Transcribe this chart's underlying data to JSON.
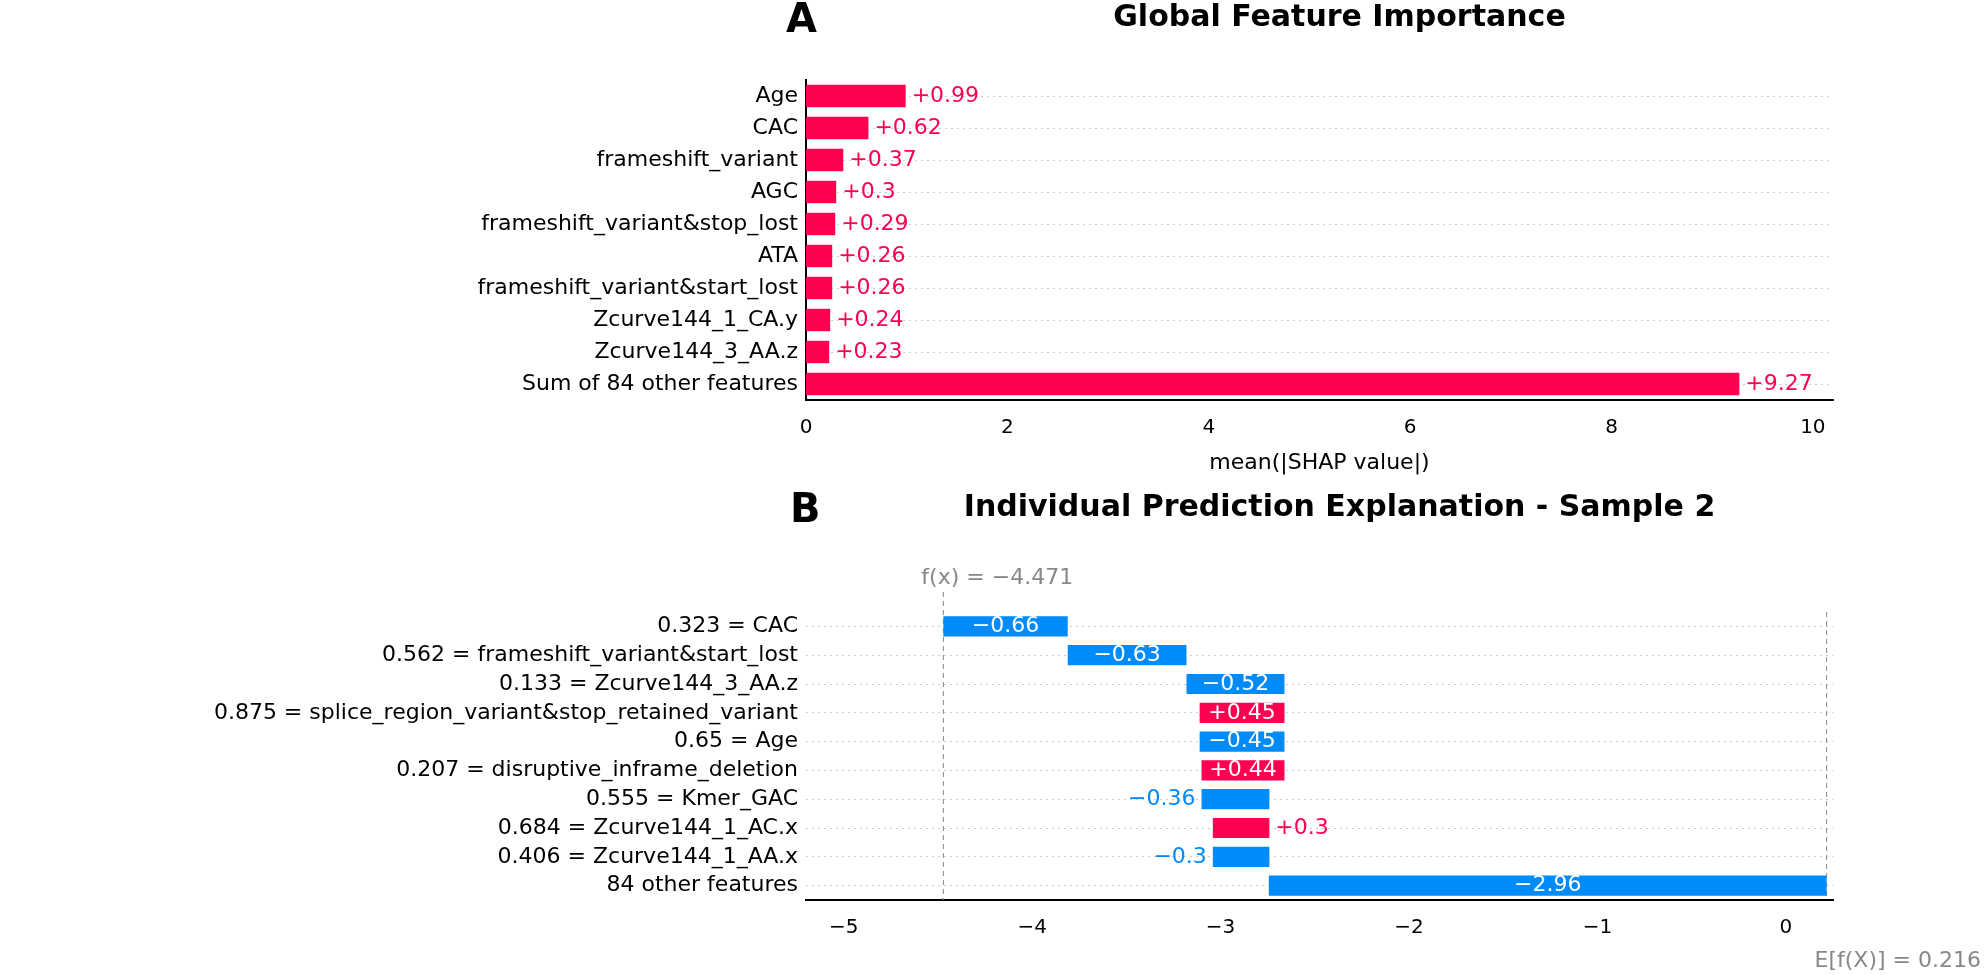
{
  "chart_data": [
    {
      "type": "bar",
      "orientation": "horizontal",
      "title": "Global Feature Importance",
      "xlabel": "mean(|SHAP value|)",
      "annotations": [
        "A"
      ],
      "categories": [
        "Age",
        "CAC",
        "frameshift_variant",
        "AGC",
        "frameshift_variant&stop_lost",
        "ATA",
        "frameshift_variant&start_lost",
        "Zcurve144_1_CA.y",
        "Zcurve144_3_AA.z",
        "Sum of 84 other features"
      ],
      "values": [
        0.99,
        0.62,
        0.37,
        0.3,
        0.29,
        0.26,
        0.26,
        0.24,
        0.23,
        9.27
      ],
      "value_labels": [
        "+0.99",
        "+0.62",
        "+0.37",
        "+0.3",
        "+0.29",
        "+0.26",
        "+0.26",
        "+0.24",
        "+0.23",
        "+9.27"
      ],
      "color": "#ff0051",
      "xlim": [
        0,
        10.2
      ],
      "xticks": [
        0,
        2,
        4,
        6,
        8,
        10
      ],
      "grid": "y",
      "legend": false
    },
    {
      "type": "bar",
      "orientation": "horizontal",
      "title": "Individual Prediction Explanation - Sample 2",
      "annotations": [
        "B"
      ],
      "categories": [
        "0.323 = CAC",
        "0.562 = frameshift_variant&start_lost",
        "0.133 = Zcurve144_3_AA.z",
        "0.875 = splice_region_variant&stop_retained_variant",
        "0.65 = Age",
        "0.207 = disruptive_inframe_deletion",
        "0.555 = Kmer_GAC",
        "0.684 = Zcurve144_1_AC.x",
        "0.406 = Zcurve144_1_AA.x",
        "84 other features"
      ],
      "values": [
        -0.66,
        -0.63,
        -0.52,
        0.45,
        -0.45,
        0.44,
        -0.36,
        0.3,
        -0.3,
        -2.96
      ],
      "base": [
        -3.811,
        -3.181,
        -2.661,
        -3.111,
        -2.661,
        -3.101,
        -2.741,
        -3.041,
        -2.741,
        0.216
      ],
      "value_labels": [
        "−0.66",
        "−0.63",
        "−0.52",
        "+0.45",
        "−0.45",
        "+0.44",
        "−0.36",
        "+0.3",
        "−0.3",
        "−2.96"
      ],
      "colors": [
        "#008bfb",
        "#008bfb",
        "#008bfb",
        "#ff0051",
        "#008bfb",
        "#ff0051",
        "#008bfb",
        "#ff0051",
        "#008bfb",
        "#008bfb"
      ],
      "xlim": [
        -5.2,
        0.25
      ],
      "xticks": [
        {
          "value": -5,
          "label": "−5"
        },
        {
          "value": -4,
          "label": "−4"
        },
        {
          "value": -3,
          "label": "−3"
        },
        {
          "value": -2,
          "label": "−2"
        },
        {
          "value": -1,
          "label": "−1"
        },
        {
          "value": 0,
          "label": "0"
        }
      ],
      "ref_lines": [
        {
          "axis": "x",
          "value": -4.471,
          "label": "f(x) = −4.471",
          "color": "#888888",
          "line_style": "dashed"
        },
        {
          "axis": "x",
          "value": 0.216,
          "label": "E[f(X)] = 0.216",
          "color": "#888888",
          "line_style": "dashed"
        }
      ],
      "grid": "y",
      "legend": false
    }
  ]
}
